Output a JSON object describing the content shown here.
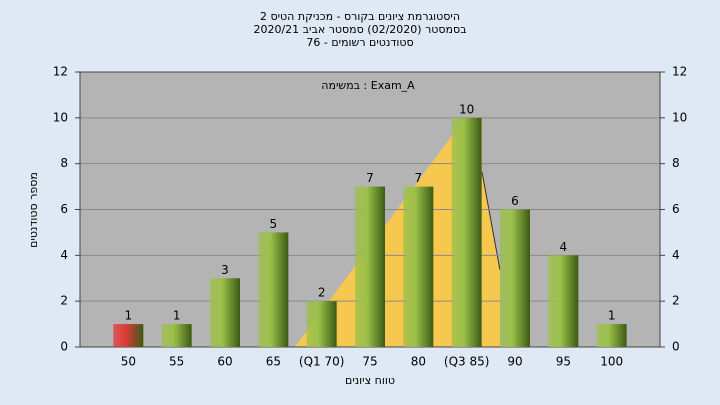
{
  "chart_data": {
    "type": "bar",
    "title": [
      "היסטוגרמת ציונים בקורס - מכניקת הטיס 2",
      "בסמסטר  (02/2020)  סמסטר אביב 2020/21",
      "סטודנטים רשומים - 76"
    ],
    "annotation": "במשימה : Exam_A",
    "x_label": "טווח ציונים",
    "y_label": "מספר סטודנטים",
    "categories": [
      "50",
      "55",
      "60",
      "65",
      "(Q1 70)",
      "75",
      "80",
      "(Q3 85)",
      "90",
      "95",
      "100"
    ],
    "values": [
      1,
      1,
      3,
      5,
      2,
      7,
      7,
      10,
      6,
      4,
      1
    ],
    "colors": [
      "#e03a3a",
      "#9cc04a",
      "#9cc04a",
      "#9cc04a",
      "#9cc04a",
      "#9cc04a",
      "#9cc04a",
      "#9cc04a",
      "#9cc04a",
      "#9cc04a",
      "#9cc04a"
    ],
    "ylim": [
      0,
      12
    ],
    "yticks": [
      0,
      2,
      4,
      6,
      8,
      10,
      12
    ],
    "y2lim": [
      0,
      12
    ],
    "y2ticks": [
      0,
      2,
      4,
      6,
      8,
      10,
      12
    ],
    "grid": true
  }
}
